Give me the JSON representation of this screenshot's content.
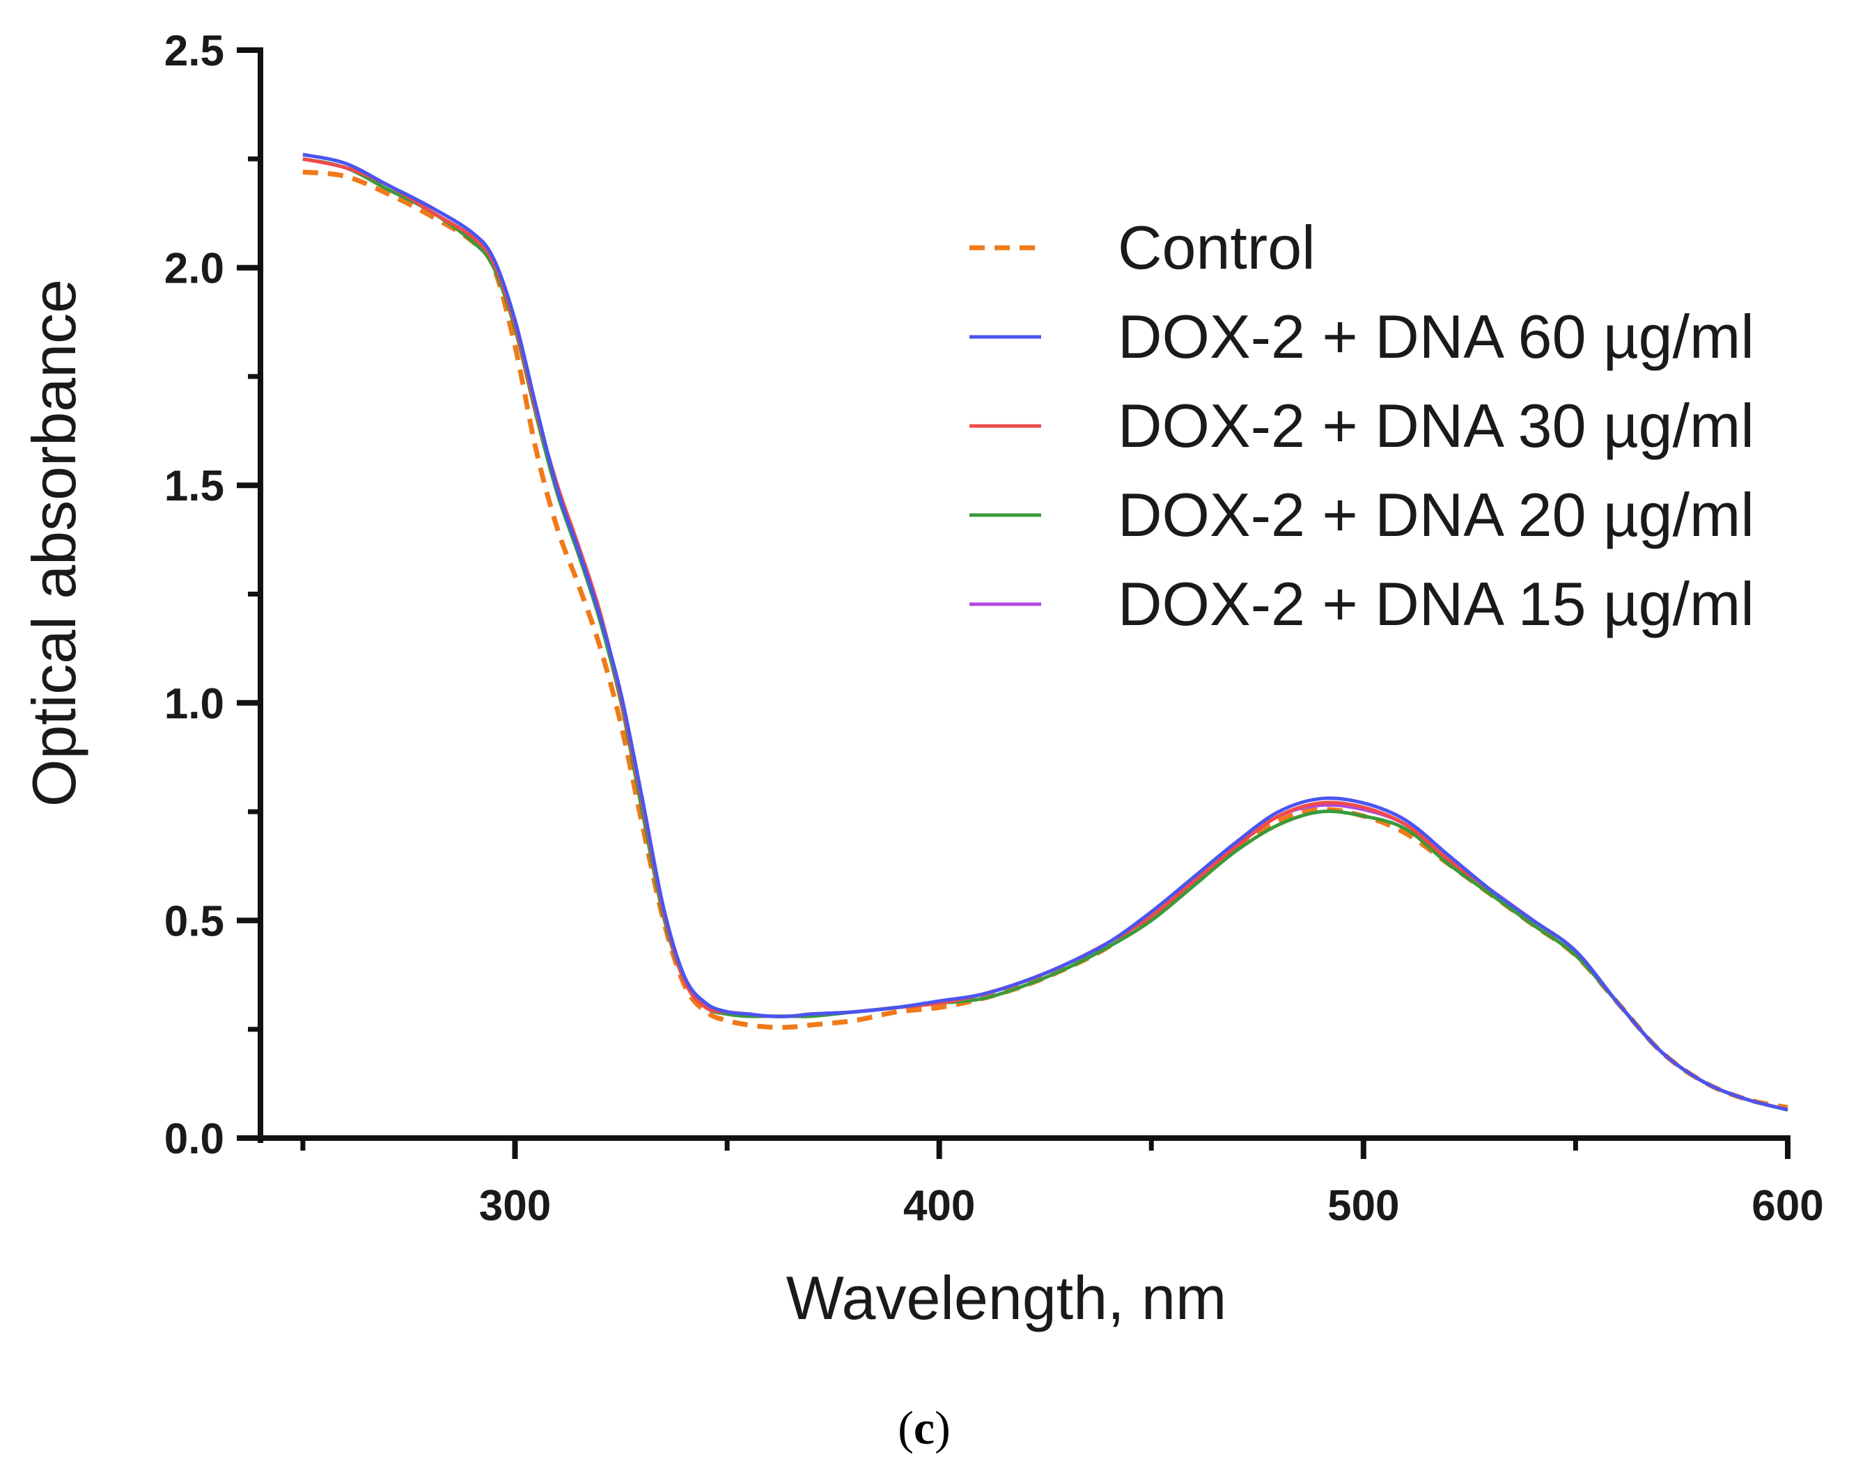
{
  "chart_data": {
    "type": "line",
    "xlabel": "Wavelength, nm",
    "ylabel": "Optical absorbance",
    "xlim": [
      240,
      600
    ],
    "ylim": [
      0,
      2.5
    ],
    "xticks": [
      300,
      400,
      500,
      600
    ],
    "yticks": [
      "0.0",
      "0.5",
      "1.0",
      "1.5",
      "2.0",
      "2.5"
    ],
    "legend_position": "top-right",
    "grid": false,
    "series": [
      {
        "name": "Control",
        "color": "#f07a1a",
        "dash": true,
        "x": [
          250,
          260,
          270,
          280,
          290,
          295,
          300,
          305,
          310,
          315,
          320,
          325,
          330,
          335,
          340,
          345,
          350,
          355,
          360,
          365,
          370,
          380,
          390,
          400,
          410,
          420,
          430,
          440,
          450,
          460,
          470,
          480,
          490,
          500,
          510,
          520,
          530,
          540,
          550,
          560,
          570,
          580,
          590,
          600
        ],
        "y": [
          2.22,
          2.21,
          2.17,
          2.12,
          2.06,
          2.0,
          1.82,
          1.58,
          1.4,
          1.27,
          1.13,
          0.95,
          0.72,
          0.5,
          0.35,
          0.29,
          0.27,
          0.26,
          0.255,
          0.255,
          0.26,
          0.27,
          0.29,
          0.3,
          0.32,
          0.35,
          0.39,
          0.44,
          0.51,
          0.59,
          0.67,
          0.73,
          0.755,
          0.74,
          0.7,
          0.63,
          0.56,
          0.49,
          0.42,
          0.31,
          0.2,
          0.13,
          0.09,
          0.07
        ]
      },
      {
        "name": "DOX-2 + DNA 60 µg/ml",
        "color": "#4a55f0",
        "dash": false,
        "x": [
          250,
          260,
          270,
          280,
          290,
          295,
          300,
          305,
          310,
          315,
          320,
          325,
          330,
          335,
          340,
          345,
          350,
          355,
          360,
          365,
          370,
          380,
          390,
          400,
          410,
          420,
          430,
          440,
          450,
          460,
          470,
          480,
          490,
          500,
          510,
          520,
          530,
          540,
          550,
          560,
          570,
          580,
          590,
          600
        ],
        "y": [
          2.26,
          2.24,
          2.19,
          2.14,
          2.08,
          2.02,
          1.88,
          1.68,
          1.49,
          1.35,
          1.2,
          1.02,
          0.78,
          0.53,
          0.37,
          0.31,
          0.29,
          0.285,
          0.28,
          0.28,
          0.285,
          0.29,
          0.3,
          0.315,
          0.33,
          0.36,
          0.4,
          0.45,
          0.52,
          0.6,
          0.68,
          0.75,
          0.78,
          0.77,
          0.73,
          0.65,
          0.57,
          0.5,
          0.43,
          0.31,
          0.2,
          0.13,
          0.09,
          0.065
        ]
      },
      {
        "name": "DOX-2 + DNA 30 µg/ml",
        "color": "#f04a4a",
        "dash": false,
        "x": [
          250,
          260,
          270,
          280,
          290,
          295,
          300,
          305,
          310,
          315,
          320,
          325,
          330,
          335,
          340,
          345,
          350,
          355,
          360,
          365,
          370,
          380,
          390,
          400,
          410,
          420,
          430,
          440,
          450,
          460,
          470,
          480,
          490,
          500,
          510,
          520,
          530,
          540,
          550,
          560,
          570,
          580,
          590,
          600
        ],
        "y": [
          2.25,
          2.23,
          2.19,
          2.13,
          2.07,
          2.01,
          1.87,
          1.67,
          1.5,
          1.36,
          1.21,
          1.01,
          0.77,
          0.52,
          0.36,
          0.3,
          0.29,
          0.285,
          0.28,
          0.28,
          0.285,
          0.29,
          0.3,
          0.31,
          0.33,
          0.36,
          0.4,
          0.45,
          0.51,
          0.59,
          0.67,
          0.74,
          0.77,
          0.76,
          0.72,
          0.64,
          0.57,
          0.5,
          0.43,
          0.31,
          0.2,
          0.13,
          0.09,
          0.065
        ]
      },
      {
        "name": "DOX-2 + DNA 20 µg/ml",
        "color": "#3a9a3a",
        "dash": false,
        "x": [
          250,
          260,
          270,
          280,
          290,
          295,
          300,
          305,
          310,
          315,
          320,
          325,
          330,
          335,
          340,
          345,
          350,
          355,
          360,
          365,
          370,
          380,
          390,
          400,
          410,
          420,
          430,
          440,
          450,
          460,
          470,
          480,
          490,
          500,
          510,
          520,
          530,
          540,
          550,
          560,
          570,
          580,
          590,
          600
        ],
        "y": [
          2.25,
          2.23,
          2.18,
          2.13,
          2.06,
          2.0,
          1.86,
          1.66,
          1.48,
          1.34,
          1.19,
          1.0,
          0.75,
          0.51,
          0.36,
          0.3,
          0.285,
          0.28,
          0.28,
          0.28,
          0.28,
          0.29,
          0.3,
          0.31,
          0.32,
          0.35,
          0.39,
          0.44,
          0.5,
          0.58,
          0.66,
          0.72,
          0.75,
          0.74,
          0.71,
          0.63,
          0.56,
          0.49,
          0.42,
          0.31,
          0.2,
          0.13,
          0.09,
          0.065
        ]
      },
      {
        "name": "DOX-2 + DNA 15 µg/ml",
        "color": "#b04ae0",
        "dash": false,
        "x": [
          250,
          260,
          270,
          280,
          290,
          295,
          300,
          305,
          310,
          315,
          320,
          325,
          330,
          335,
          340,
          345,
          350,
          355,
          360,
          365,
          370,
          380,
          390,
          400,
          410,
          420,
          430,
          440,
          450,
          460,
          470,
          480,
          490,
          500,
          510,
          520,
          530,
          540,
          550,
          560,
          570,
          580,
          590,
          600
        ],
        "y": [
          2.25,
          2.23,
          2.19,
          2.13,
          2.07,
          2.01,
          1.87,
          1.67,
          1.49,
          1.35,
          1.2,
          1.01,
          0.77,
          0.52,
          0.36,
          0.3,
          0.285,
          0.28,
          0.28,
          0.28,
          0.285,
          0.29,
          0.3,
          0.31,
          0.33,
          0.36,
          0.4,
          0.45,
          0.51,
          0.59,
          0.67,
          0.74,
          0.765,
          0.755,
          0.72,
          0.64,
          0.57,
          0.5,
          0.43,
          0.31,
          0.2,
          0.13,
          0.09,
          0.065
        ]
      }
    ]
  },
  "caption": {
    "open": "(",
    "letter": "c",
    "close": ")"
  }
}
